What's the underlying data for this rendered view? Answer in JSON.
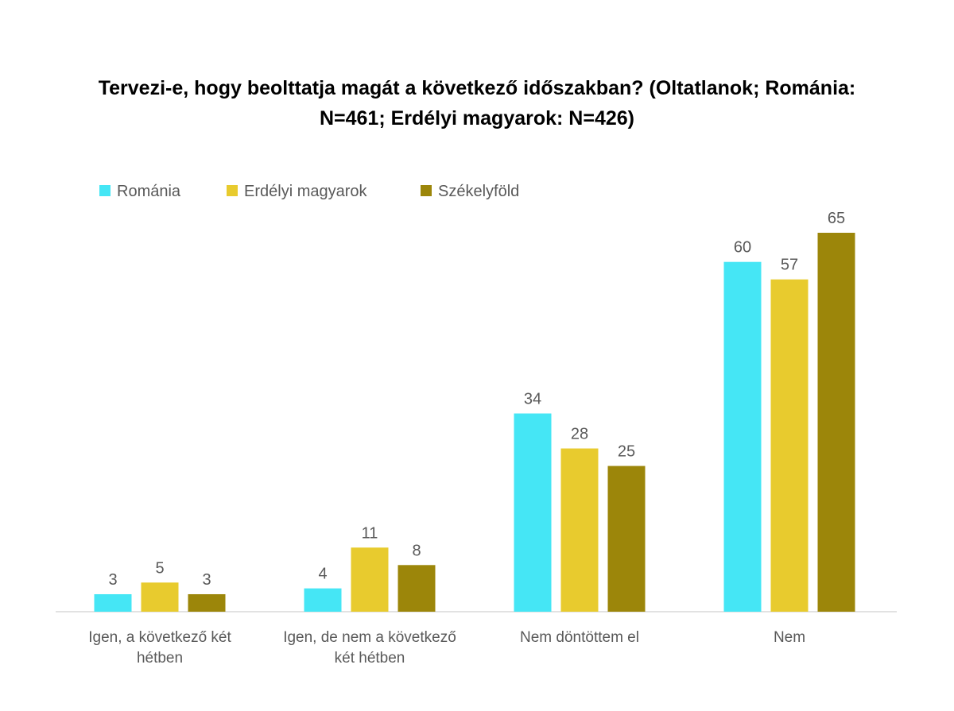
{
  "chart_data": {
    "type": "bar",
    "title_lines": [
      "Tervezi-e, hogy beolttatja magát a következő időszakban? (Oltatlanok; Románia:",
      "N=461; Erdélyi magyarok: N=426)"
    ],
    "categories": [
      [
        "Igen, a következő két",
        "hétben"
      ],
      [
        "Igen, de nem a következő",
        "két hétben"
      ],
      [
        "Nem döntöttem el"
      ],
      [
        "Nem"
      ]
    ],
    "series": [
      {
        "name": "Románia",
        "color": "#45E6F5",
        "values": [
          3,
          4,
          34,
          60
        ]
      },
      {
        "name": "Erdélyi magyarok",
        "color": "#E8CB2E",
        "values": [
          5,
          11,
          28,
          57
        ]
      },
      {
        "name": "Székelyföld",
        "color": "#9C860A",
        "values": [
          3,
          8,
          25,
          65
        ]
      }
    ],
    "ylim": [
      0,
      65
    ],
    "grid": false,
    "legend_position": "top-left",
    "data_labels": true
  }
}
